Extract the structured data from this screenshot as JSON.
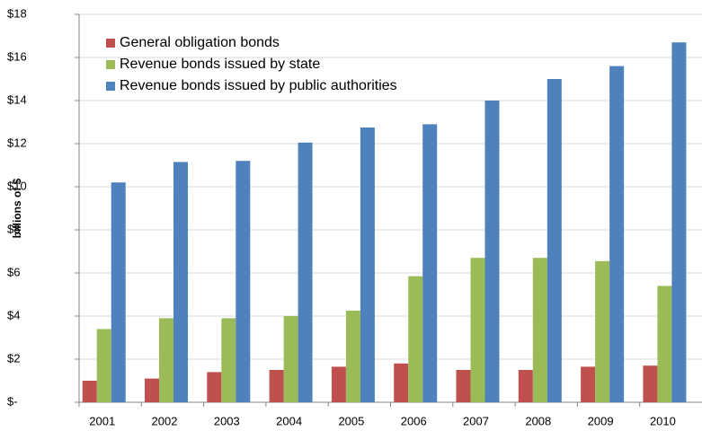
{
  "chart_data": {
    "type": "bar",
    "y_label": "billions of $",
    "categories": [
      "2001",
      "2002",
      "2003",
      "2004",
      "2005",
      "2006",
      "2007",
      "2008",
      "2009",
      "2010"
    ],
    "series": [
      {
        "name": "General obligation bonds",
        "color": "#c0504d",
        "values": [
          1.0,
          1.1,
          1.4,
          1.5,
          1.65,
          1.8,
          1.5,
          1.5,
          1.65,
          1.7
        ]
      },
      {
        "name": "Revenue bonds issued by state",
        "color": "#9bbb59",
        "values": [
          3.4,
          3.9,
          3.9,
          4.0,
          4.25,
          5.85,
          6.7,
          6.7,
          6.55,
          5.4
        ]
      },
      {
        "name": "Revenue bonds issued by public authorities",
        "color": "#4f81bd",
        "values": [
          10.2,
          11.15,
          11.2,
          12.05,
          12.75,
          12.9,
          14.0,
          15.0,
          15.6,
          16.7
        ]
      }
    ],
    "ylim": [
      0,
      18
    ],
    "yticks": [
      {
        "value": 0,
        "label": "$-"
      },
      {
        "value": 2,
        "label": "$2"
      },
      {
        "value": 4,
        "label": "$4"
      },
      {
        "value": 6,
        "label": "$6"
      },
      {
        "value": 8,
        "label": "$8"
      },
      {
        "value": 10,
        "label": "$10"
      },
      {
        "value": 12,
        "label": "$12"
      },
      {
        "value": 14,
        "label": "$14"
      },
      {
        "value": 16,
        "label": "$16"
      },
      {
        "value": 18,
        "label": "$18"
      }
    ],
    "grid": true,
    "legend": "top-left"
  }
}
